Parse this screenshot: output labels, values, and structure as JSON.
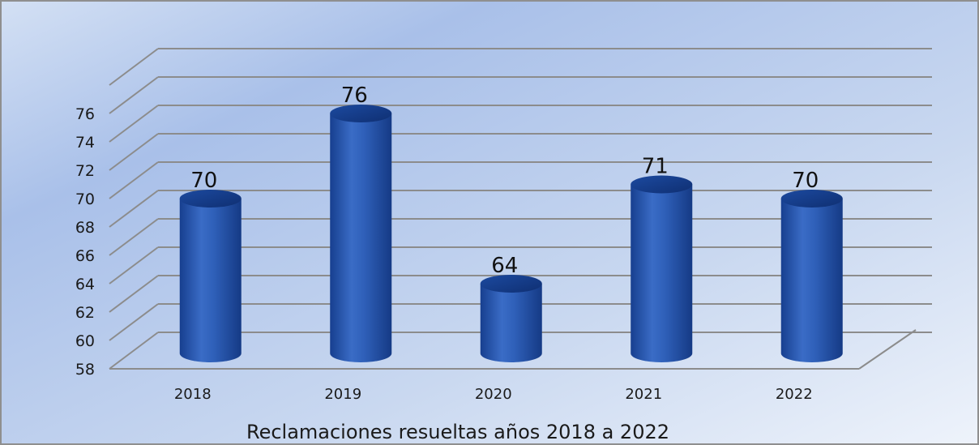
{
  "chart_data": {
    "type": "bar",
    "style": "3d-cylinder",
    "categories": [
      "2018",
      "2019",
      "2020",
      "2021",
      "2022"
    ],
    "values": [
      70,
      76,
      64,
      71,
      70
    ],
    "data_labels": [
      "70",
      "76",
      "64",
      "71",
      "70"
    ],
    "title": "",
    "xlabel": "Reclamaciones resueltas años 2018 a 2022",
    "ylabel": "",
    "ylim": [
      58,
      76
    ],
    "yticks": [
      "58",
      "60",
      "62",
      "64",
      "66",
      "68",
      "70",
      "72",
      "74",
      "76"
    ],
    "grid": true,
    "legend": "none"
  },
  "colors": {
    "bar": "#2a5bb8",
    "bar_dark": "#153a85",
    "bar_top": "#1d4ea6",
    "background_light": "#dfe9f7",
    "background_mid": "#a9c1e8",
    "gridline": "#8c8c8c",
    "frame_border": "#888888"
  }
}
